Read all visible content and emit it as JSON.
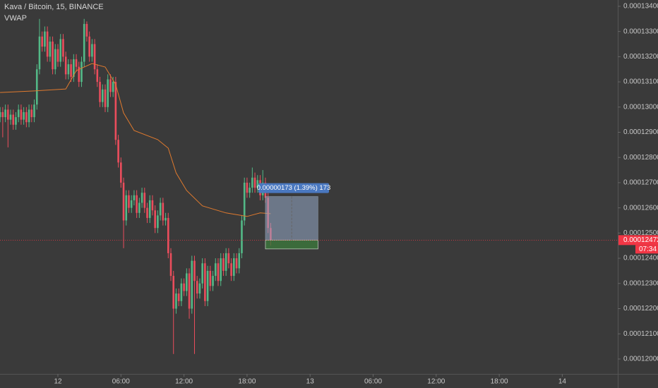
{
  "chart_data": {
    "type": "candlestick",
    "title": "Kava / Bitcoin, 15, BINANCE",
    "up_color": "#53b987",
    "down_color": "#eb4d5c",
    "x": [
      -5.5,
      -5.25,
      -5,
      -4.75,
      -4.5,
      -4.25,
      -4,
      -3.75,
      -3.5,
      -3.25,
      -3,
      -2.75,
      -2.5,
      -2.25,
      -2,
      -1.75,
      -1.5,
      -1.25,
      -1,
      -0.75,
      -0.5,
      -0.25,
      0,
      0.25,
      0.5,
      0.75,
      1,
      1.25,
      1.5,
      1.75,
      2,
      2.25,
      2.5,
      2.75,
      3,
      3.25,
      3.5,
      3.75,
      4,
      4.25,
      4.5,
      4.75,
      5,
      5.25,
      5.5,
      5.75,
      6,
      6.25,
      6.5,
      6.75,
      7,
      7.25,
      7.5,
      7.75,
      8,
      8.25,
      8.5,
      8.75,
      9,
      9.25,
      9.5,
      9.75,
      10,
      10.25,
      10.5,
      10.75,
      11,
      11.25,
      11.5,
      11.75,
      12,
      12.25,
      12.5,
      12.75,
      13,
      13.25,
      13.5,
      13.75,
      14,
      14.25,
      14.5,
      14.75,
      15,
      15.25,
      15.5,
      15.75,
      16,
      16.25,
      16.5,
      16.75,
      17,
      17.25,
      17.5,
      17.75,
      18,
      18.25,
      18.5,
      18.75,
      19,
      19.25,
      19.5,
      19.75,
      20,
      20.25
    ],
    "open": [
      0.0001296,
      0.0001298,
      0.0001296,
      0.0001299,
      0.0001295,
      0.0001297,
      0.0001293,
      0.0001296,
      0.0001299,
      0.0001295,
      0.0001298,
      0.0001294,
      0.0001299,
      0.0001296,
      0.0001301,
      0.0001315,
      0.0001328,
      0.0001324,
      0.000133,
      0.000132,
      0.0001326,
      0.0001315,
      0.0001323,
      0.0001318,
      0.0001327,
      0.000132,
      0.0001313,
      0.0001317,
      0.0001312,
      0.0001319,
      0.0001316,
      0.000131,
      0.0001318,
      0.0001333,
      0.0001328,
      0.000132,
      0.0001325,
      0.0001315,
      0.000131,
      0.0001302,
      0.0001307,
      0.00013,
      0.0001311,
      0.0001306,
      0.000131,
      0.0001287,
      0.0001278,
      0.000127,
      0.0001255,
      0.0001265,
      0.000126,
      0.0001263,
      0.0001265,
      0.0001258,
      0.0001262,
      0.0001266,
      0.000126,
      0.0001256,
      0.0001263,
      0.0001259,
      0.0001252,
      0.0001257,
      0.0001262,
      0.0001255,
      0.0001256,
      0.0001242,
      0.0001233,
      0.000122,
      0.0001226,
      0.0001223,
      0.000123,
      0.0001227,
      0.0001234,
      0.000122,
      0.0001239,
      0.0001231,
      0.0001226,
      0.000123,
      0.0001238,
      0.0001223,
      0.0001235,
      0.0001229,
      0.0001233,
      0.0001238,
      0.0001231,
      0.000124,
      0.0001235,
      0.0001242,
      0.0001238,
      0.0001233,
      0.000124,
      0.0001236,
      0.0001242,
      0.0001255,
      0.000127,
      0.0001266,
      0.0001268,
      0.0001272,
      0.0001268,
      0.0001271,
      0.0001265,
      0.000127,
      0.0001264,
      0.0001252
    ],
    "high": [
      0.00013,
      0.00013,
      0.0001301,
      0.0001301,
      0.0001299,
      0.0001299,
      0.0001298,
      0.0001301,
      0.0001301,
      0.00013,
      0.00013,
      0.0001301,
      0.0001301,
      0.0001303,
      0.0001317,
      0.0001335,
      0.000133,
      0.0001332,
      0.0001332,
      0.0001328,
      0.0001328,
      0.0001325,
      0.0001325,
      0.0001329,
      0.0001329,
      0.0001322,
      0.0001319,
      0.0001319,
      0.0001321,
      0.0001321,
      0.0001318,
      0.000132,
      0.0001335,
      0.0001334,
      0.000133,
      0.0001327,
      0.0001327,
      0.0001317,
      0.0001312,
      0.0001309,
      0.0001309,
      0.0001313,
      0.0001313,
      0.0001312,
      0.0001312,
      0.0001289,
      0.000128,
      0.0001272,
      0.0001267,
      0.0001267,
      0.0001265,
      0.0001267,
      0.0001267,
      0.0001264,
      0.0001268,
      0.0001268,
      0.0001262,
      0.0001265,
      0.0001265,
      0.0001261,
      0.0001259,
      0.0001264,
      0.0001264,
      0.0001258,
      0.0001258,
      0.0001244,
      0.0001235,
      0.0001228,
      0.0001228,
      0.0001232,
      0.0001232,
      0.0001236,
      0.0001236,
      0.0001241,
      0.0001241,
      0.0001233,
      0.0001232,
      0.000124,
      0.000124,
      0.0001237,
      0.0001237,
      0.0001235,
      0.000124,
      0.000124,
      0.0001242,
      0.0001242,
      0.0001244,
      0.0001244,
      0.000124,
      0.0001242,
      0.0001242,
      0.0001244,
      0.0001257,
      0.0001272,
      0.0001272,
      0.000127,
      0.0001276,
      0.0001274,
      0.0001273,
      0.0001273,
      0.0001275,
      0.0001272,
      0.0001266,
      0.0001254
    ],
    "low": [
      0.0001294,
      0.0001288,
      0.0001294,
      0.0001284,
      0.0001293,
      0.0001291,
      0.0001291,
      0.0001294,
      0.0001293,
      0.0001293,
      0.0001292,
      0.0001292,
      0.0001294,
      0.0001294,
      0.0001299,
      0.0001313,
      0.0001322,
      0.0001322,
      0.0001318,
      0.0001318,
      0.0001313,
      0.0001313,
      0.0001316,
      0.0001316,
      0.0001318,
      0.0001311,
      0.0001311,
      0.000131,
      0.000131,
      0.0001314,
      0.0001308,
      0.0001308,
      0.0001316,
      0.0001326,
      0.0001318,
      0.0001318,
      0.0001313,
      0.0001308,
      0.00013,
      0.00013,
      0.0001298,
      0.0001298,
      0.0001304,
      0.0001304,
      0.0001285,
      0.0001276,
      0.0001268,
      0.0001244,
      0.0001253,
      0.0001258,
      0.0001258,
      0.0001261,
      0.0001256,
      0.0001256,
      0.000126,
      0.0001258,
      0.0001254,
      0.0001254,
      0.0001257,
      0.000125,
      0.000125,
      0.0001255,
      0.0001253,
      0.0001253,
      0.000124,
      0.0001231,
      0.0001202,
      0.0001218,
      0.0001221,
      0.0001221,
      0.0001225,
      0.0001225,
      0.0001216,
      0.0001218,
      0.0001202,
      0.0001224,
      0.0001224,
      0.0001228,
      0.0001221,
      0.0001221,
      0.0001227,
      0.0001227,
      0.0001231,
      0.0001229,
      0.0001229,
      0.0001233,
      0.0001233,
      0.0001236,
      0.0001231,
      0.0001231,
      0.0001234,
      0.0001234,
      0.000124,
      0.0001253,
      0.0001264,
      0.0001264,
      0.0001266,
      0.0001266,
      0.0001266,
      0.0001263,
      0.0001263,
      0.0001262,
      0.000125,
      0.0001245
    ],
    "close": [
      0.0001298,
      0.0001296,
      0.0001299,
      0.0001295,
      0.0001297,
      0.0001293,
      0.0001296,
      0.0001299,
      0.0001295,
      0.0001298,
      0.0001294,
      0.0001299,
      0.0001296,
      0.0001301,
      0.0001315,
      0.0001328,
      0.0001324,
      0.000133,
      0.000132,
      0.0001326,
      0.0001315,
      0.0001323,
      0.0001318,
      0.0001327,
      0.000132,
      0.0001313,
      0.0001317,
      0.0001312,
      0.0001319,
      0.0001316,
      0.000131,
      0.0001318,
      0.0001333,
      0.0001328,
      0.000132,
      0.0001325,
      0.0001315,
      0.000131,
      0.0001302,
      0.0001307,
      0.00013,
      0.0001311,
      0.0001306,
      0.000131,
      0.0001287,
      0.0001278,
      0.000127,
      0.0001255,
      0.0001265,
      0.000126,
      0.0001263,
      0.0001265,
      0.0001258,
      0.0001262,
      0.0001266,
      0.000126,
      0.0001256,
      0.0001263,
      0.0001259,
      0.0001252,
      0.0001257,
      0.0001262,
      0.0001255,
      0.0001256,
      0.0001242,
      0.0001233,
      0.000122,
      0.0001226,
      0.0001223,
      0.000123,
      0.0001227,
      0.0001234,
      0.000122,
      0.0001239,
      0.0001231,
      0.0001226,
      0.000123,
      0.0001238,
      0.0001223,
      0.0001235,
      0.0001229,
      0.0001233,
      0.0001238,
      0.0001231,
      0.000124,
      0.0001235,
      0.0001242,
      0.0001238,
      0.0001233,
      0.000124,
      0.0001236,
      0.0001242,
      0.0001255,
      0.000127,
      0.0001266,
      0.0001268,
      0.0001272,
      0.0001268,
      0.0001271,
      0.0001265,
      0.000127,
      0.0001264,
      0.0001252,
      0.00012472
    ],
    "series": [
      {
        "name": "VWAP",
        "color": "#e07a2e",
        "x": [
          -5.5,
          -2.25,
          0.75,
          1.75,
          3.25,
          4.5,
          5.5,
          6.25,
          7.25,
          9.5,
          10.5,
          11.25,
          12.25,
          13.75,
          16,
          18,
          19.25,
          20.25
        ],
        "values": [
          0.00013058,
          0.00013064,
          0.00013072,
          0.00013145,
          0.00013173,
          0.00013159,
          0.00013089,
          0.00012977,
          0.00012907,
          0.00012871,
          0.00012837,
          0.00012739,
          0.00012669,
          0.00012608,
          0.0001258,
          0.00012566,
          0.0001258,
          0.00012577
        ]
      }
    ],
    "xlim": [
      -5.51,
      53.28
    ],
    "ylim": [
      0.00011941,
      0.00013425
    ],
    "xticks": [
      {
        "value": 0,
        "label": "12"
      },
      {
        "value": 6,
        "label": "06:00"
      },
      {
        "value": 12,
        "label": "12:00"
      },
      {
        "value": 18,
        "label": "18:00"
      },
      {
        "value": 24,
        "label": "13"
      },
      {
        "value": 30,
        "label": "06:00"
      },
      {
        "value": 36,
        "label": "12:00"
      },
      {
        "value": 42,
        "label": "18:00"
      },
      {
        "value": 48,
        "label": "14"
      }
    ],
    "yticks": [
      {
        "value": 0.00012,
        "label": "0.00012000"
      },
      {
        "value": 0.000121,
        "label": "0.00012100"
      },
      {
        "value": 0.000122,
        "label": "0.00012200"
      },
      {
        "value": 0.000123,
        "label": "0.00012300"
      },
      {
        "value": 0.000124,
        "label": "0.00012400"
      },
      {
        "value": 0.000125,
        "label": "0.00012500"
      },
      {
        "value": 0.000126,
        "label": "0.00012600"
      },
      {
        "value": 0.000127,
        "label": "0.00012700"
      },
      {
        "value": 0.000128,
        "label": "0.00012800"
      },
      {
        "value": 0.000129,
        "label": "0.00012900"
      },
      {
        "value": 0.00013,
        "label": "0.00013000"
      },
      {
        "value": 0.000131,
        "label": "0.00013100"
      },
      {
        "value": 0.000132,
        "label": "0.00013200"
      },
      {
        "value": 0.000133,
        "label": "0.00013300"
      },
      {
        "value": 0.000134,
        "label": "0.00013400"
      }
    ],
    "grid": false,
    "last_price": {
      "value": 0.00012472,
      "countdown": "07:34",
      "color": "#f23645"
    },
    "position": {
      "label": "0.00000173 (1.39%) 173",
      "entry": 0.00012472,
      "target": 0.00012645,
      "stop": 0.00012437,
      "start": 19.75,
      "end": 24.75
    }
  }
}
